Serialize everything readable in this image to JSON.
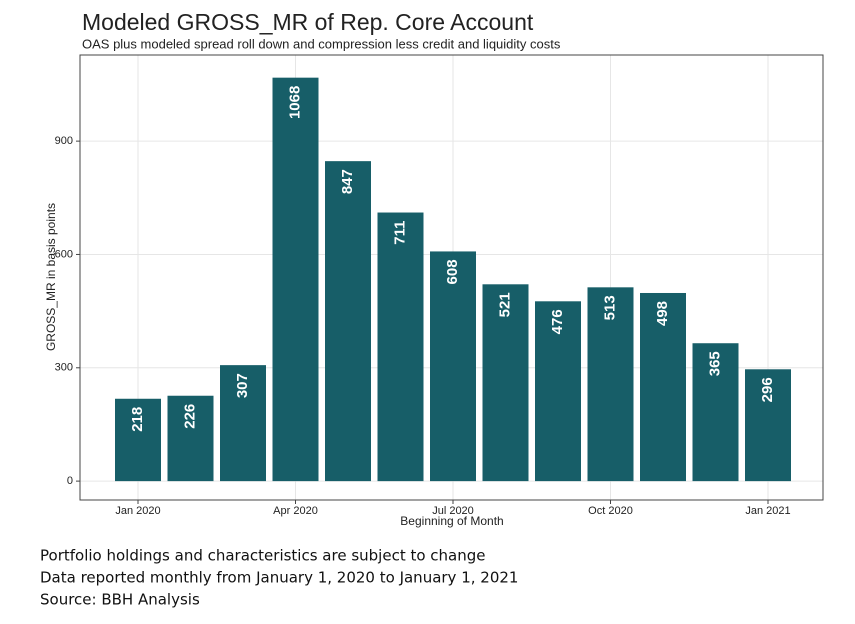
{
  "chart_data": {
    "type": "bar",
    "title": "Modeled GROSS_MR of Rep. Core Account",
    "subtitle": "OAS plus modeled spread roll down and compression less credit and liquidity costs",
    "x_label": "Beginning of Month",
    "y_label": "GROSS_MR in basis points",
    "categories": [
      "Jan 2020",
      null,
      null,
      "Apr 2020",
      null,
      null,
      "Jul 2020",
      null,
      null,
      "Oct 2020",
      null,
      null,
      "Jan 2021"
    ],
    "values": [
      218,
      226,
      307,
      1068,
      847,
      711,
      608,
      521,
      476,
      513,
      498,
      365,
      296
    ],
    "color": "#175e68",
    "ylim": [
      -50,
      1128
    ],
    "yticks": [
      0,
      300,
      600,
      900
    ],
    "grid": true
  },
  "footer": [
    "Portfolio holdings and characteristics are subject to change",
    "Data reported monthly from January 1, 2020 to January 1, 2021",
    "Source: BBH Analysis"
  ]
}
